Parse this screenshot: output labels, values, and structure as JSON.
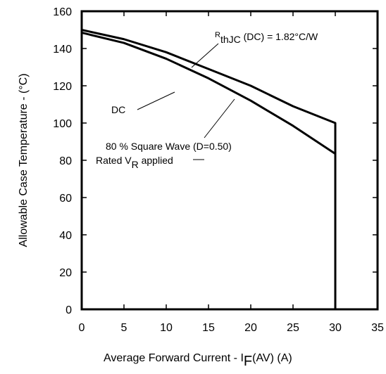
{
  "chart_data": {
    "type": "line",
    "xlabel": "Average Forward Current - I",
    "xlabel_sub": "F",
    "xlabel_tail": "(AV) (A)",
    "ylabel": "Allowable Case Temperature - (°C)",
    "xlim": [
      0,
      35
    ],
    "ylim": [
      0,
      160
    ],
    "x_ticks": [
      0,
      5,
      10,
      15,
      20,
      25,
      30,
      35
    ],
    "y_ticks": [
      0,
      20,
      40,
      60,
      80,
      100,
      120,
      140,
      160
    ],
    "x_tick_labels": [
      "0",
      "5",
      "10",
      "15",
      "20",
      "25",
      "30",
      "35"
    ],
    "y_tick_labels": [
      "0",
      "20",
      "40",
      "60",
      "80",
      "100",
      "120",
      "140",
      "160"
    ],
    "grid": false,
    "series": [
      {
        "name": "DC",
        "x": [
          0,
          5,
          10,
          15,
          20,
          25,
          30,
          30
        ],
        "y": [
          150,
          145,
          138,
          129,
          120,
          109,
          100,
          0
        ]
      },
      {
        "name": "80 % Square Wave (D=0.50)",
        "x": [
          0,
          5,
          10,
          15,
          20,
          25,
          30
        ],
        "y": [
          148.5,
          143,
          134.5,
          124,
          112,
          98.5,
          83.5
        ]
      }
    ],
    "annotations": {
      "rth_main": "R",
      "rth_sub": "thJC",
      "rth_tail": " (DC) = 1.82°C/W",
      "dc_label": "DC",
      "square_wave_label": "80 % Square Wave (D=0.50)",
      "rated_main": "Rated V",
      "rated_sub": "R",
      "rated_tail": " applied"
    }
  }
}
